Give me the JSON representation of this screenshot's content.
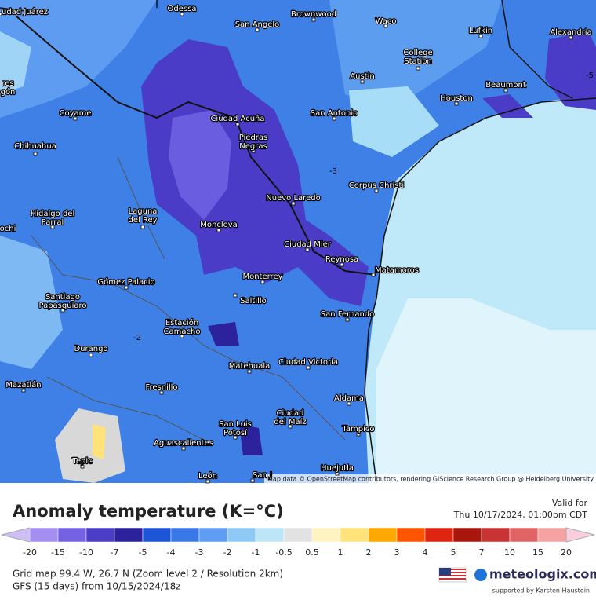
{
  "map": {
    "places": [
      [
        "udad Juárez"
      ],
      [
        "Odessa"
      ],
      [
        "Brownwood"
      ],
      [
        "Waco"
      ],
      [
        "Lufkin"
      ],
      [
        "Alexandria"
      ],
      [
        "San Angelo"
      ],
      [
        "College",
        "Station"
      ],
      [
        "Austin"
      ],
      [
        "Beaumont"
      ],
      [
        "Houston"
      ],
      [
        "res",
        "gón"
      ],
      [
        "Coyame"
      ],
      [
        "Ciudad Acuña"
      ],
      [
        "San Antonio"
      ],
      [
        "Chihuahua"
      ],
      [
        "Piedras",
        "Negras"
      ],
      [
        "Corpus Christi"
      ],
      [
        "Nuevo Laredo"
      ],
      [
        "Hidalgo del",
        "Parral"
      ],
      [
        "Laguna",
        "del Rey"
      ],
      [
        "ochi"
      ],
      [
        "Monclova"
      ],
      [
        "Ciudad Mier"
      ],
      [
        "Reynosa"
      ],
      [
        "Matamoros"
      ],
      [
        "Gómez Palacio"
      ],
      [
        "Monterrey"
      ],
      [
        "Saltillo"
      ],
      [
        "Santiago",
        "Papasquiaro"
      ],
      [
        "San Fernando"
      ],
      [
        "Estación",
        "Camacho"
      ],
      [
        "Durango"
      ],
      [
        "Matehuala"
      ],
      [
        "Ciudad Victoria"
      ],
      [
        "Mazatlán"
      ],
      [
        "Fresnillo"
      ],
      [
        "Aldama"
      ],
      [
        "Ciudad",
        "del Maíz"
      ],
      [
        "San Luis",
        "Potosí"
      ],
      [
        "Tampico"
      ],
      [
        "Aguascalientes"
      ],
      [
        "Tepic"
      ],
      [
        "Huejutla"
      ],
      [
        "León"
      ],
      [
        "San J"
      ]
    ],
    "contour_labels": [
      "-3",
      "-2",
      "-5"
    ],
    "attribution": "Map data © OpenStreetMap contributors, rendering GIScience Research Group @ Heidelberg University"
  },
  "legend": {
    "title": "Anomaly temperature (K=°C)",
    "ticks": [
      "-20",
      "-15",
      "-10",
      "-7",
      "-5",
      "-4",
      "-3",
      "-2",
      "-1",
      "-0.5",
      "0.5",
      "1",
      "2",
      "3",
      "4",
      "5",
      "7",
      "10",
      "15",
      "20"
    ],
    "colors": [
      "#cdbff5",
      "#a48ef0",
      "#7462e2",
      "#4b3dc6",
      "#2c239c",
      "#1d55d6",
      "#3a78e8",
      "#5f9cf2",
      "#8fcaf6",
      "#bce6f8",
      "#e2e2e2",
      "#fff3c2",
      "#ffe27a",
      "#ffa800",
      "#ff5400",
      "#e02412",
      "#a8160e",
      "#c83434",
      "#e06464",
      "#f4a2a2",
      "#f9cedb"
    ]
  },
  "valid": {
    "label": "Valid for",
    "time": "Thu 10/17/2024, 01:00pm CDT"
  },
  "footer": {
    "grid": "Grid map 99.4 W, 26.7 N (Zoom level 2 / Resolution 2km)",
    "model": "GFS (15 days) from  10/15/2024/18z",
    "brand": "meteologix.com",
    "support": "supported by Karsten Haustein"
  }
}
